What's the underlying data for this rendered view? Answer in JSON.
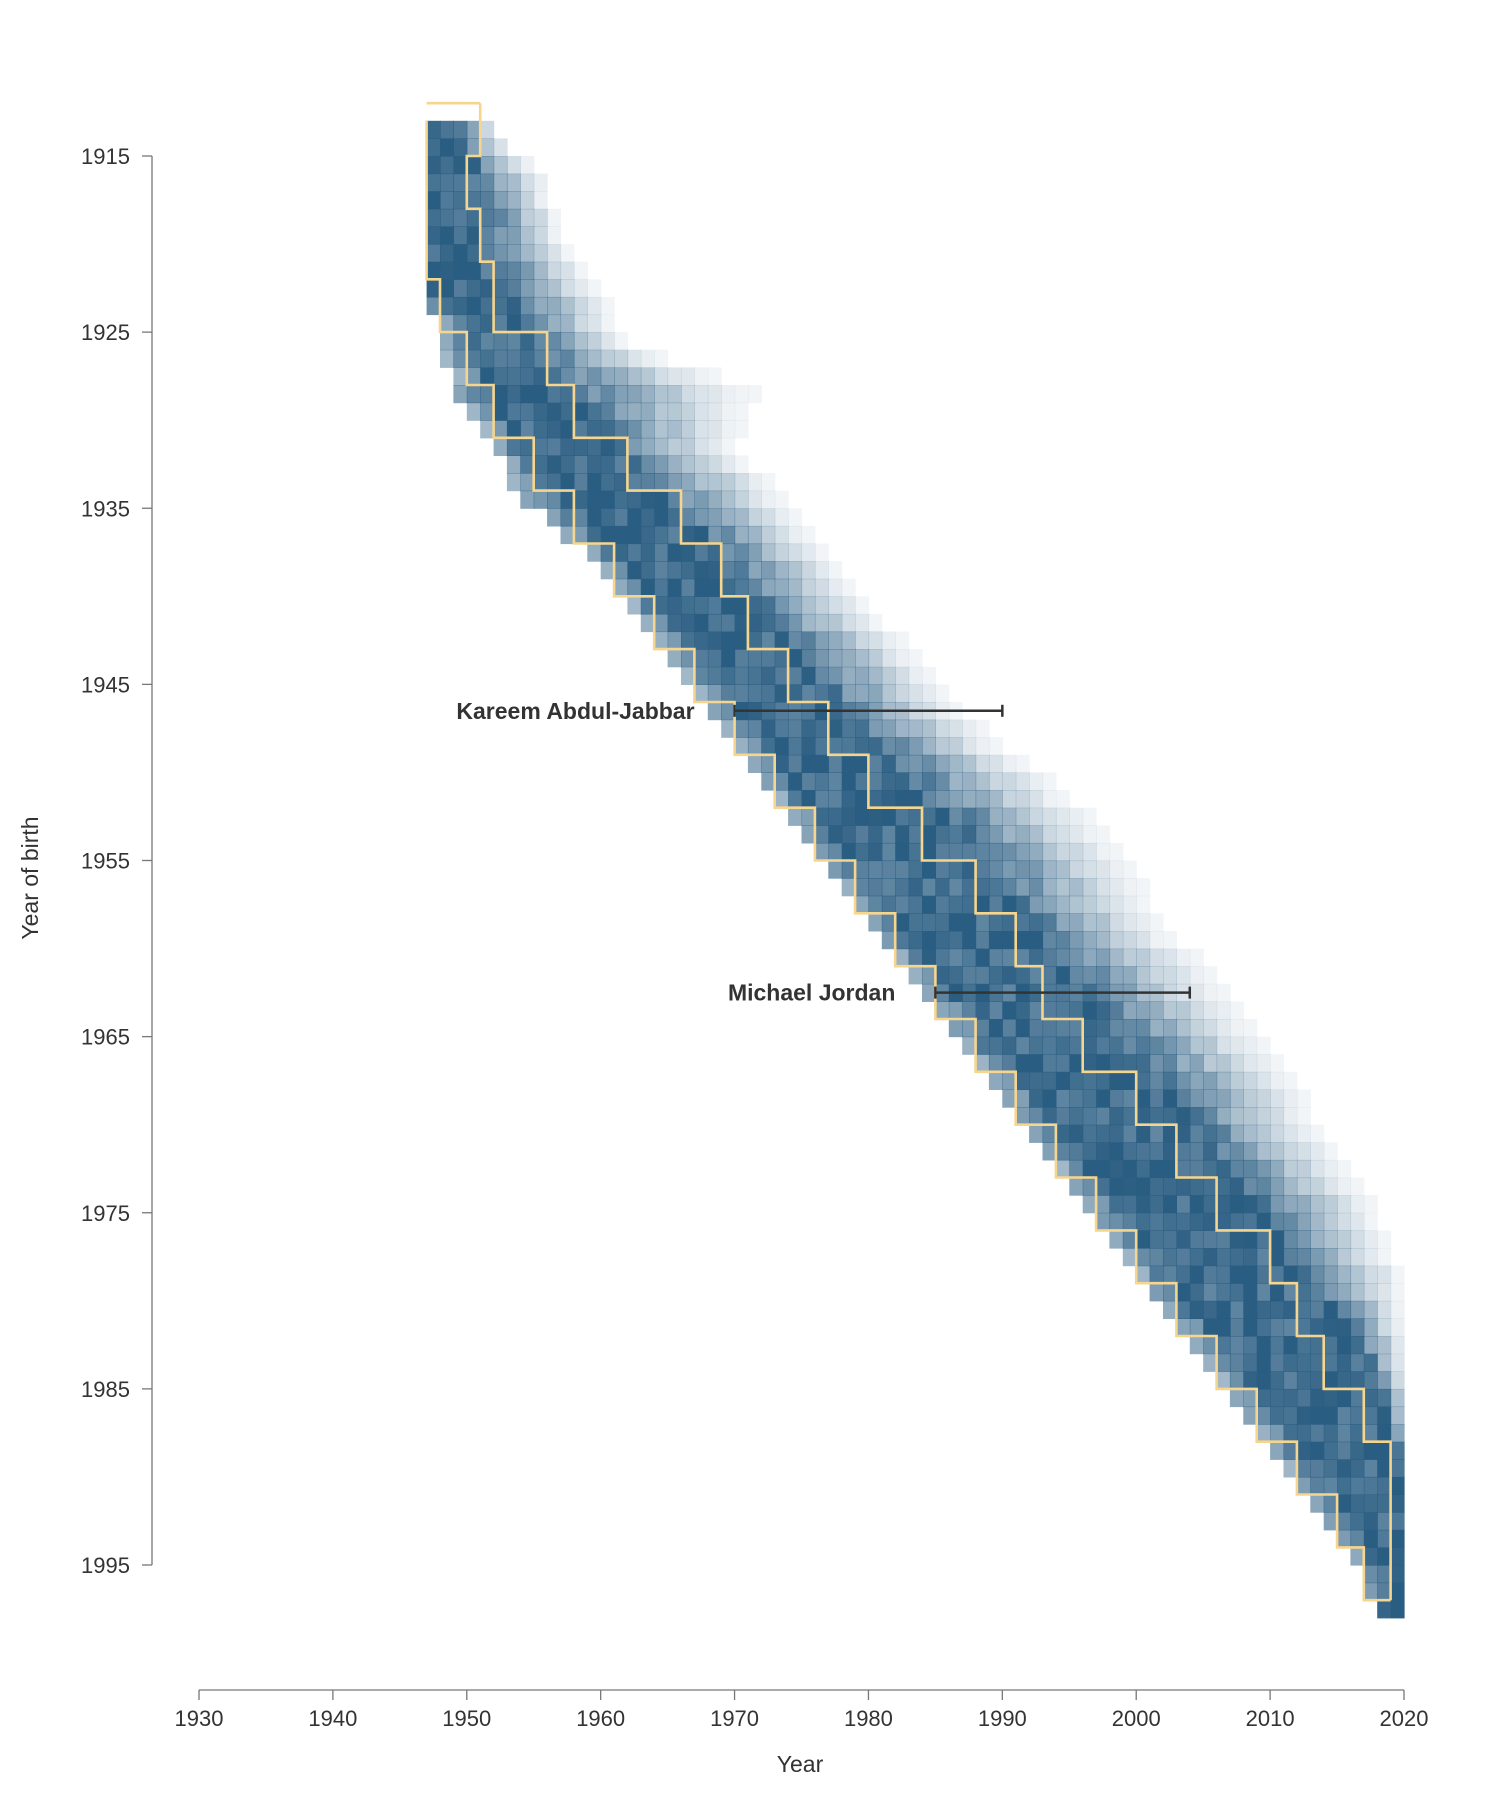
{
  "chart_data": {
    "type": "heatmap",
    "title": "",
    "xlabel": "Year",
    "ylabel": "Year of birth",
    "xlim": [
      1930,
      2020
    ],
    "ylim": [
      1913,
      1999
    ],
    "x_ticks": [
      1930,
      1940,
      1950,
      1960,
      1970,
      1980,
      1990,
      2000,
      2010,
      2020
    ],
    "y_ticks": [
      1915,
      1925,
      1935,
      1945,
      1955,
      1965,
      1975,
      1985,
      1995
    ],
    "grid": false,
    "legend": "none",
    "colors": {
      "heat": "#2a5d82",
      "outline": "#f6d58e",
      "annotation": "#333333",
      "axis": "#777777"
    },
    "band_profile": [
      {
        "birth_year": 1914,
        "band_start": 1947,
        "band_end": 1951,
        "peak_start": 1947,
        "peak_end": 1949
      },
      {
        "birth_year": 1917,
        "band_start": 1947,
        "band_end": 1955,
        "peak_start": 1947,
        "peak_end": 1950
      },
      {
        "birth_year": 1920,
        "band_start": 1947,
        "band_end": 1956,
        "peak_start": 1947,
        "peak_end": 1951
      },
      {
        "birth_year": 1923,
        "band_start": 1947,
        "band_end": 1959,
        "peak_start": 1947,
        "peak_end": 1952
      },
      {
        "birth_year": 1926,
        "band_start": 1948,
        "band_end": 1961,
        "peak_start": 1950,
        "peak_end": 1954
      },
      {
        "birth_year": 1929,
        "band_start": 1949,
        "band_end": 1971,
        "peak_start": 1951,
        "peak_end": 1956
      },
      {
        "birth_year": 1932,
        "band_start": 1952,
        "band_end": 1969,
        "peak_start": 1954,
        "peak_end": 1960
      },
      {
        "birth_year": 1935,
        "band_start": 1954,
        "band_end": 1973,
        "peak_start": 1957,
        "peak_end": 1964
      },
      {
        "birth_year": 1938,
        "band_start": 1959,
        "band_end": 1976,
        "peak_start": 1961,
        "peak_end": 1968
      },
      {
        "birth_year": 1941,
        "band_start": 1962,
        "band_end": 1979,
        "peak_start": 1964,
        "peak_end": 1971
      },
      {
        "birth_year": 1944,
        "band_start": 1965,
        "band_end": 1983,
        "peak_start": 1967,
        "peak_end": 1974
      },
      {
        "birth_year": 1947,
        "band_start": 1968,
        "band_end": 1986,
        "peak_start": 1970,
        "peak_end": 1977
      },
      {
        "birth_year": 1950,
        "band_start": 1971,
        "band_end": 1991,
        "peak_start": 1973,
        "peak_end": 1981
      },
      {
        "birth_year": 1953,
        "band_start": 1974,
        "band_end": 1996,
        "peak_start": 1976,
        "peak_end": 1985
      },
      {
        "birth_year": 1956,
        "band_start": 1977,
        "band_end": 1999,
        "peak_start": 1979,
        "peak_end": 1988
      },
      {
        "birth_year": 1959,
        "band_start": 1980,
        "band_end": 2001,
        "peak_start": 1982,
        "peak_end": 1991
      },
      {
        "birth_year": 1962,
        "band_start": 1983,
        "band_end": 2005,
        "peak_start": 1985,
        "peak_end": 1994
      },
      {
        "birth_year": 1965,
        "band_start": 1986,
        "band_end": 2008,
        "peak_start": 1988,
        "peak_end": 1997
      },
      {
        "birth_year": 1968,
        "band_start": 1989,
        "band_end": 2011,
        "peak_start": 1991,
        "peak_end": 2001
      },
      {
        "birth_year": 1971,
        "band_start": 1992,
        "band_end": 2013,
        "peak_start": 1994,
        "peak_end": 2004
      },
      {
        "birth_year": 1974,
        "band_start": 1995,
        "band_end": 2016,
        "peak_start": 1997,
        "peak_end": 2007
      },
      {
        "birth_year": 1977,
        "band_start": 1998,
        "band_end": 2018,
        "peak_start": 2000,
        "peak_end": 2010
      },
      {
        "birth_year": 1980,
        "band_start": 2001,
        "band_end": 2019,
        "peak_start": 2003,
        "peak_end": 2013
      },
      {
        "birth_year": 1983,
        "band_start": 2004,
        "band_end": 2019,
        "peak_start": 2006,
        "peak_end": 2016
      },
      {
        "birth_year": 1986,
        "band_start": 2007,
        "band_end": 2019,
        "peak_start": 2009,
        "peak_end": 2018
      },
      {
        "birth_year": 1989,
        "band_start": 2010,
        "band_end": 2019,
        "peak_start": 2012,
        "peak_end": 2019
      },
      {
        "birth_year": 1992,
        "band_start": 2013,
        "band_end": 2019,
        "peak_start": 2015,
        "peak_end": 2019
      },
      {
        "birth_year": 1995,
        "band_start": 2016,
        "band_end": 2019,
        "peak_start": 2017,
        "peak_end": 2019
      },
      {
        "birth_year": 1998,
        "band_start": 2018,
        "band_end": 2019,
        "peak_start": 2018,
        "peak_end": 2019
      }
    ],
    "outline": {
      "left": [
        [
          1914,
          1947
        ],
        [
          1917,
          1947
        ],
        [
          1920,
          1947
        ],
        [
          1923,
          1948
        ],
        [
          1926,
          1950
        ],
        [
          1929,
          1952
        ],
        [
          1932,
          1955
        ],
        [
          1935,
          1958
        ],
        [
          1938,
          1961
        ],
        [
          1941,
          1964
        ],
        [
          1944,
          1967
        ],
        [
          1947,
          1970
        ],
        [
          1950,
          1973
        ],
        [
          1953,
          1976
        ],
        [
          1956,
          1979
        ],
        [
          1959,
          1982
        ],
        [
          1962,
          1985
        ],
        [
          1965,
          1988
        ],
        [
          1968,
          1991
        ],
        [
          1971,
          1994
        ],
        [
          1974,
          1997
        ],
        [
          1977,
          2000
        ],
        [
          1980,
          2003
        ],
        [
          1983,
          2006
        ],
        [
          1986,
          2009
        ],
        [
          1989,
          2012
        ],
        [
          1992,
          2015
        ],
        [
          1995,
          2017
        ],
        [
          1998,
          2019
        ]
      ],
      "right": [
        [
          1913,
          1951
        ],
        [
          1916,
          1950
        ],
        [
          1919,
          1951
        ],
        [
          1922,
          1952
        ],
        [
          1926,
          1956
        ],
        [
          1929,
          1958
        ],
        [
          1932,
          1962
        ],
        [
          1935,
          1966
        ],
        [
          1938,
          1969
        ],
        [
          1941,
          1971
        ],
        [
          1944,
          1974
        ],
        [
          1947,
          1977
        ],
        [
          1950,
          1980
        ],
        [
          1953,
          1984
        ],
        [
          1956,
          1988
        ],
        [
          1959,
          1991
        ],
        [
          1962,
          1993
        ],
        [
          1965,
          1996
        ],
        [
          1968,
          2000
        ],
        [
          1971,
          2003
        ],
        [
          1974,
          2006
        ],
        [
          1977,
          2010
        ],
        [
          1980,
          2012
        ],
        [
          1983,
          2014
        ],
        [
          1986,
          2017
        ],
        [
          1989,
          2019
        ],
        [
          1998,
          2019
        ]
      ]
    },
    "annotations": [
      {
        "label": "Kareem Abdul-Jabbar",
        "birth_year": 1947,
        "start": 1970,
        "end": 1990
      },
      {
        "label": "Michael Jordan",
        "birth_year": 1963,
        "start": 1985,
        "end": 2004
      }
    ]
  }
}
